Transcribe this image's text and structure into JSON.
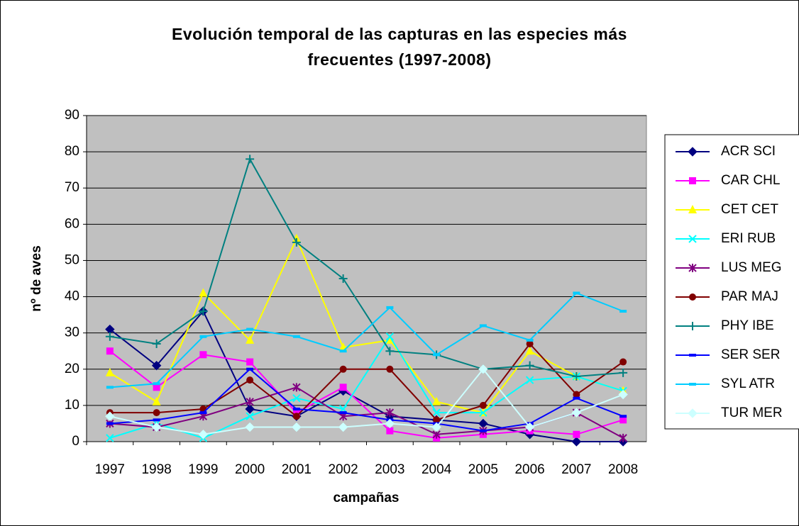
{
  "chart_data": {
    "type": "line",
    "title": "Evolución temporal de las capturas en las especies más frecuentes (1997-2008)",
    "x_label": "campañas",
    "y_label": "nº de aves",
    "categories": [
      "1997",
      "1998",
      "1999",
      "2000",
      "2001",
      "2002",
      "2003",
      "2004",
      "2005",
      "2006",
      "2007",
      "2008"
    ],
    "ylim": [
      0,
      90
    ],
    "yticks": [
      0,
      10,
      20,
      30,
      40,
      50,
      60,
      70,
      80,
      90
    ],
    "grid": true,
    "legend": "right",
    "series": [
      {
        "name": "ACR SCI",
        "color": "#000080",
        "marker": "diamond",
        "values": [
          31,
          21,
          36,
          9,
          7,
          14,
          7,
          6,
          5,
          2,
          0,
          0
        ]
      },
      {
        "name": "CAR CHL",
        "color": "#ff00ff",
        "marker": "square",
        "values": [
          25,
          15,
          24,
          22,
          8,
          15,
          3,
          1,
          2,
          3,
          2,
          6
        ]
      },
      {
        "name": "CET CET",
        "color": "#ffff00",
        "marker": "triangle",
        "values": [
          19,
          11,
          41,
          28,
          56,
          26,
          28,
          11,
          8,
          25,
          18,
          14
        ]
      },
      {
        "name": "ERI RUB",
        "color": "#00ffff",
        "marker": "x",
        "values": [
          1,
          5,
          1,
          7,
          12,
          9,
          29,
          8,
          8,
          17,
          18,
          14
        ]
      },
      {
        "name": "LUS MEG",
        "color": "#800080",
        "marker": "star",
        "values": [
          5,
          4,
          7,
          11,
          15,
          7,
          8,
          2,
          3,
          4,
          8,
          1
        ]
      },
      {
        "name": "PAR MAJ",
        "color": "#800000",
        "marker": "circle",
        "values": [
          8,
          8,
          9,
          17,
          7,
          20,
          20,
          6,
          10,
          27,
          13,
          22
        ]
      },
      {
        "name": "PHY IBE",
        "color": "#008080",
        "marker": "plus",
        "values": [
          29,
          27,
          36,
          78,
          55,
          45,
          25,
          24,
          20,
          21,
          18,
          19
        ]
      },
      {
        "name": "SER SER",
        "color": "#0000ff",
        "marker": "dash",
        "values": [
          5,
          6,
          8,
          20,
          9,
          8,
          6,
          5,
          3,
          5,
          12,
          7
        ]
      },
      {
        "name": "SYL ATR",
        "color": "#00ccff",
        "marker": "dash",
        "values": [
          15,
          16,
          29,
          31,
          29,
          25,
          37,
          24,
          32,
          28,
          41,
          36
        ]
      },
      {
        "name": "TUR MER",
        "color": "#ccffff",
        "marker": "diamond",
        "values": [
          7,
          4,
          2,
          4,
          4,
          4,
          5,
          4,
          20,
          4,
          8,
          13
        ]
      }
    ]
  }
}
